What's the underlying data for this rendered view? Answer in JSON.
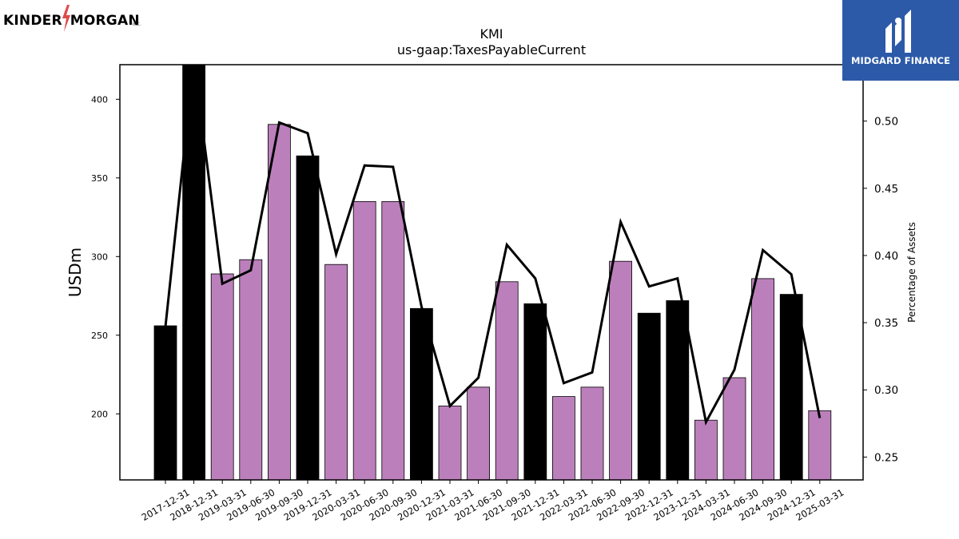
{
  "logos": {
    "kinder_morgan": {
      "left": "KINDER",
      "right": "MORGAN",
      "inc": "INC."
    },
    "midgard": {
      "text": "MIDGARD FINANCE",
      "bg_color": "#2c5aa8"
    }
  },
  "chart_data": {
    "type": "bar",
    "title": "KMI",
    "subtitle": "us-gaap:TaxesPayableCurrent",
    "ylabel": "USDm",
    "y2label": "Percentage of Assets",
    "ylim": [
      158,
      422
    ],
    "y2lim": [
      0.233,
      0.542
    ],
    "yticks": [
      200,
      250,
      300,
      350,
      400
    ],
    "y2ticks": [
      0.25,
      0.3,
      0.35,
      0.4,
      0.45,
      0.5
    ],
    "colors": {
      "annual": "#000000",
      "quarterly": "#bb80bb",
      "line": "#000000"
    },
    "categories": [
      "2017-12-31",
      "2018-12-31",
      "2019-03-31",
      "2019-06-30",
      "2019-09-30",
      "2019-12-31",
      "2020-03-31",
      "2020-06-30",
      "2020-09-30",
      "2020-12-31",
      "2021-03-31",
      "2021-06-30",
      "2021-09-30",
      "2021-12-31",
      "2022-03-31",
      "2022-06-30",
      "2022-09-30",
      "2022-12-31",
      "2023-12-31",
      "2024-03-31",
      "2024-06-30",
      "2024-09-30",
      "2024-12-31",
      "2025-03-31"
    ],
    "values": [
      256,
      428,
      289,
      298,
      384,
      364,
      295,
      335,
      335,
      267,
      205,
      217,
      284,
      270,
      211,
      217,
      297,
      264,
      272,
      196,
      223,
      286,
      276,
      202
    ],
    "bar_kind": [
      "annual",
      "annual",
      "quarterly",
      "quarterly",
      "quarterly",
      "annual",
      "quarterly",
      "quarterly",
      "quarterly",
      "annual",
      "quarterly",
      "quarterly",
      "quarterly",
      "annual",
      "quarterly",
      "quarterly",
      "quarterly",
      "annual",
      "annual",
      "quarterly",
      "quarterly",
      "quarterly",
      "annual",
      "quarterly"
    ],
    "series": [
      {
        "values": [
          0.347,
          0.545,
          0.379,
          0.389,
          0.499,
          0.491,
          0.401,
          0.467,
          0.466,
          0.362,
          0.288,
          0.309,
          0.408,
          0.383,
          0.305,
          0.313,
          0.425,
          0.377,
          0.383,
          0.276,
          0.315,
          0.404,
          0.386,
          0.279
        ]
      }
    ]
  }
}
